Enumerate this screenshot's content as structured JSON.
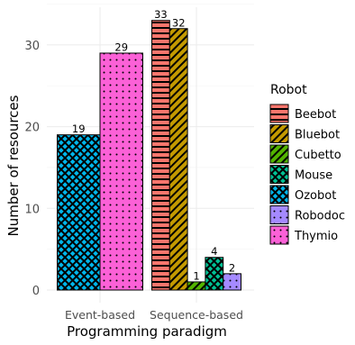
{
  "chart_data": {
    "type": "bar",
    "categories": [
      "Event-based",
      "Sequence-based"
    ],
    "xlabel": "Programming paradigm",
    "ylabel": "Number of resources",
    "ylim": [
      0,
      35
    ],
    "yticks": [
      0,
      10,
      20,
      30
    ],
    "grid": true,
    "legend": {
      "title": "Robot",
      "position": "right"
    },
    "series": [
      {
        "name": "Beebot",
        "values": [
          null,
          33
        ],
        "color": "#F8766D",
        "pattern": "horizontal-stripes"
      },
      {
        "name": "Bluebot",
        "values": [
          null,
          32
        ],
        "color": "#C49A00",
        "pattern": "diagonal-stripes"
      },
      {
        "name": "Cubetto",
        "values": [
          null,
          1
        ],
        "color": "#53B400",
        "pattern": "diagonal-stripes"
      },
      {
        "name": "Mouse",
        "values": [
          null,
          4
        ],
        "color": "#00C094",
        "pattern": "crosshatch"
      },
      {
        "name": "Ozobot",
        "values": [
          19,
          null
        ],
        "color": "#00B6EB",
        "pattern": "crosshatch"
      },
      {
        "name": "Robodoc",
        "values": [
          null,
          2
        ],
        "color": "#A58AFF",
        "pattern": "dots"
      },
      {
        "name": "Thymio",
        "values": [
          29,
          null
        ],
        "color": "#FB61D7",
        "pattern": "dots"
      }
    ]
  }
}
